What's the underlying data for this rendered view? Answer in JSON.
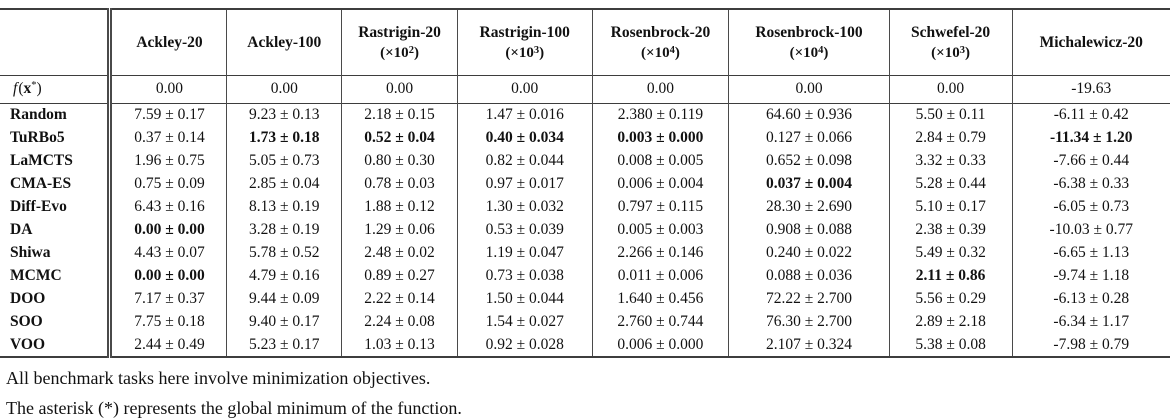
{
  "table": {
    "multiplier_prefix": "(×10",
    "multiplier_suffix": ")",
    "columns": [
      {
        "label": "Ackley-20",
        "exp": ""
      },
      {
        "label": "Ackley-100",
        "exp": ""
      },
      {
        "label": "Rastrigin-20",
        "exp": "2"
      },
      {
        "label": "Rastrigin-100",
        "exp": "3"
      },
      {
        "label": "Rosenbrock-20",
        "exp": "4"
      },
      {
        "label": "Rosenbrock-100",
        "exp": "4"
      },
      {
        "label": "Schwefel-20",
        "exp": "3"
      },
      {
        "label": "Michalewicz-20",
        "exp": ""
      }
    ],
    "optimum": {
      "label": {
        "func": "f",
        "open": "(",
        "arg": "x",
        "star": "*",
        "close": ")"
      },
      "values": [
        "0.00",
        "0.00",
        "0.00",
        "0.00",
        "0.00",
        "0.00",
        "0.00",
        "-19.63"
      ]
    },
    "rows": [
      {
        "label": "Random",
        "cells": [
          {
            "v": "7.59 ± 0.17",
            "b": false
          },
          {
            "v": "9.23 ± 0.13",
            "b": false
          },
          {
            "v": "2.18 ± 0.15",
            "b": false
          },
          {
            "v": "1.47 ± 0.016",
            "b": false
          },
          {
            "v": "2.380 ± 0.119",
            "b": false
          },
          {
            "v": "64.60 ± 0.936",
            "b": false
          },
          {
            "v": "5.50 ± 0.11",
            "b": false
          },
          {
            "v": "-6.11 ± 0.42",
            "b": false
          }
        ]
      },
      {
        "label": "TuRBo5",
        "cells": [
          {
            "v": "0.37 ± 0.14",
            "b": false
          },
          {
            "v": "1.73 ± 0.18",
            "b": true
          },
          {
            "v": "0.52 ± 0.04",
            "b": true
          },
          {
            "v": "0.40 ± 0.034",
            "b": true
          },
          {
            "v": "0.003 ± 0.000",
            "b": true
          },
          {
            "v": "0.127 ± 0.066",
            "b": false
          },
          {
            "v": "2.84 ± 0.79",
            "b": false
          },
          {
            "v": "-11.34 ± 1.20",
            "b": true
          }
        ]
      },
      {
        "label": "LaMCTS",
        "cells": [
          {
            "v": "1.96 ± 0.75",
            "b": false
          },
          {
            "v": "5.05 ± 0.73",
            "b": false
          },
          {
            "v": "0.80 ± 0.30",
            "b": false
          },
          {
            "v": "0.82 ± 0.044",
            "b": false
          },
          {
            "v": "0.008 ± 0.005",
            "b": false
          },
          {
            "v": "0.652 ± 0.098",
            "b": false
          },
          {
            "v": "3.32 ± 0.33",
            "b": false
          },
          {
            "v": "-7.66 ± 0.44",
            "b": false
          }
        ]
      },
      {
        "label": "CMA-ES",
        "cells": [
          {
            "v": "0.75 ± 0.09",
            "b": false
          },
          {
            "v": "2.85 ± 0.04",
            "b": false
          },
          {
            "v": "0.78 ± 0.03",
            "b": false
          },
          {
            "v": "0.97 ± 0.017",
            "b": false
          },
          {
            "v": "0.006 ± 0.004",
            "b": false
          },
          {
            "v": "0.037 ± 0.004",
            "b": true
          },
          {
            "v": "5.28 ± 0.44",
            "b": false
          },
          {
            "v": "-6.38 ± 0.33",
            "b": false
          }
        ]
      },
      {
        "label": "Diff-Evo",
        "cells": [
          {
            "v": "6.43 ± 0.16",
            "b": false
          },
          {
            "v": "8.13 ± 0.19",
            "b": false
          },
          {
            "v": "1.88 ± 0.12",
            "b": false
          },
          {
            "v": "1.30 ± 0.032",
            "b": false
          },
          {
            "v": "0.797 ± 0.115",
            "b": false
          },
          {
            "v": "28.30 ± 2.690",
            "b": false
          },
          {
            "v": "5.10 ± 0.17",
            "b": false
          },
          {
            "v": "-6.05 ± 0.73",
            "b": false
          }
        ]
      },
      {
        "label": "DA",
        "cells": [
          {
            "v": "0.00 ± 0.00",
            "b": true
          },
          {
            "v": "3.28 ± 0.19",
            "b": false
          },
          {
            "v": "1.29 ± 0.06",
            "b": false
          },
          {
            "v": "0.53 ± 0.039",
            "b": false
          },
          {
            "v": "0.005 ± 0.003",
            "b": false
          },
          {
            "v": "0.908 ± 0.088",
            "b": false
          },
          {
            "v": "2.38 ± 0.39",
            "b": false
          },
          {
            "v": "-10.03 ± 0.77",
            "b": false
          }
        ]
      },
      {
        "label": "Shiwa",
        "cells": [
          {
            "v": "4.43 ± 0.07",
            "b": false
          },
          {
            "v": "5.78 ± 0.52",
            "b": false
          },
          {
            "v": "2.48 ± 0.02",
            "b": false
          },
          {
            "v": "1.19 ± 0.047",
            "b": false
          },
          {
            "v": "2.266 ± 0.146",
            "b": false
          },
          {
            "v": "0.240 ± 0.022",
            "b": false
          },
          {
            "v": "5.49 ± 0.32",
            "b": false
          },
          {
            "v": "-6.65 ± 1.13",
            "b": false
          }
        ]
      },
      {
        "label": "MCMC",
        "cells": [
          {
            "v": "0.00 ± 0.00",
            "b": true
          },
          {
            "v": "4.79 ± 0.16",
            "b": false
          },
          {
            "v": "0.89 ± 0.27",
            "b": false
          },
          {
            "v": "0.73 ± 0.038",
            "b": false
          },
          {
            "v": "0.011 ± 0.006",
            "b": false
          },
          {
            "v": "0.088 ± 0.036",
            "b": false
          },
          {
            "v": "2.11 ± 0.86",
            "b": true
          },
          {
            "v": "-9.74 ± 1.18",
            "b": false
          }
        ]
      },
      {
        "label": "DOO",
        "cells": [
          {
            "v": "7.17 ± 0.37",
            "b": false
          },
          {
            "v": "9.44 ± 0.09",
            "b": false
          },
          {
            "v": "2.22 ± 0.14",
            "b": false
          },
          {
            "v": "1.50 ± 0.044",
            "b": false
          },
          {
            "v": "1.640 ± 0.456",
            "b": false
          },
          {
            "v": "72.22 ± 2.700",
            "b": false
          },
          {
            "v": "5.56 ± 0.29",
            "b": false
          },
          {
            "v": "-6.13 ± 0.28",
            "b": false
          }
        ]
      },
      {
        "label": "SOO",
        "cells": [
          {
            "v": "7.75 ± 0.18",
            "b": false
          },
          {
            "v": "9.40 ± 0.17",
            "b": false
          },
          {
            "v": "2.24 ± 0.08",
            "b": false
          },
          {
            "v": "1.54 ± 0.027",
            "b": false
          },
          {
            "v": "2.760 ± 0.744",
            "b": false
          },
          {
            "v": "76.30 ± 2.700",
            "b": false
          },
          {
            "v": "2.89 ± 2.18",
            "b": false
          },
          {
            "v": "-6.34 ± 1.17",
            "b": false
          }
        ]
      },
      {
        "label": "VOO",
        "cells": [
          {
            "v": "2.44 ± 0.49",
            "b": false
          },
          {
            "v": "5.23 ± 0.17",
            "b": false
          },
          {
            "v": "1.03 ± 0.13",
            "b": false
          },
          {
            "v": "0.92 ± 0.028",
            "b": false
          },
          {
            "v": "0.006 ± 0.000",
            "b": false
          },
          {
            "v": "2.107 ± 0.324",
            "b": false
          },
          {
            "v": "5.38 ± 0.08",
            "b": false
          },
          {
            "v": "-7.98 ± 0.79",
            "b": false
          }
        ]
      }
    ]
  },
  "footnotes": [
    "All benchmark tasks here involve minimization objectives.",
    "The asterisk (*) represents the global minimum of the function."
  ]
}
